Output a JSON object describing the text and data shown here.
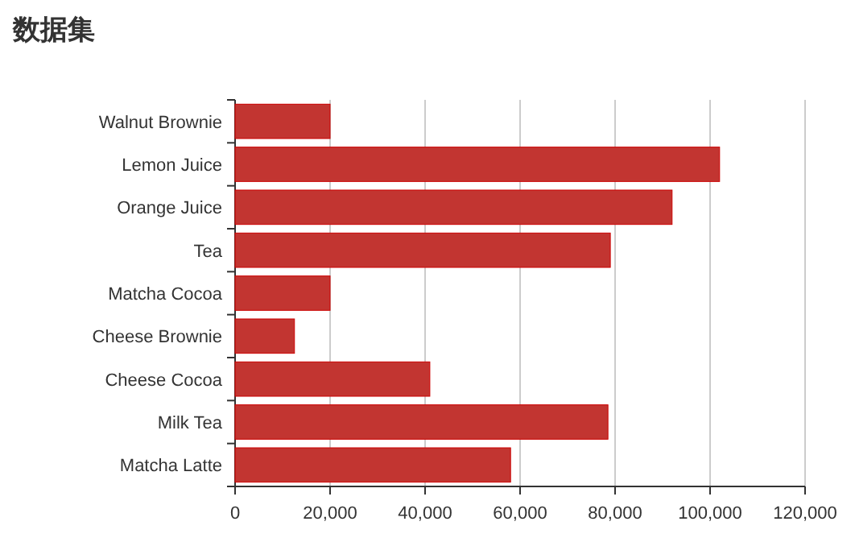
{
  "chart_data": {
    "type": "bar",
    "title": "数据集",
    "orientation": "horizontal",
    "categories": [
      "Walnut Brownie",
      "Lemon Juice",
      "Orange Juice",
      "Tea",
      "Matcha Cocoa",
      "Cheese Brownie",
      "Cheese Cocoa",
      "Milk Tea",
      "Matcha Latte"
    ],
    "values": [
      20000,
      102000,
      92000,
      79000,
      20000,
      12500,
      41000,
      78500,
      58000
    ],
    "color": "#c23531",
    "xlim": [
      0,
      120000
    ],
    "xticks": [
      0,
      {
        "value": 20000,
        "label": "20,000"
      },
      {
        "value": 40000,
        "label": "40,000"
      },
      {
        "value": 60000,
        "label": "60,000"
      },
      {
        "value": 80000,
        "label": "80,000"
      },
      {
        "value": 100000,
        "label": "100,000"
      },
      {
        "value": 120000,
        "label": "120,000"
      }
    ],
    "grid": "x"
  }
}
